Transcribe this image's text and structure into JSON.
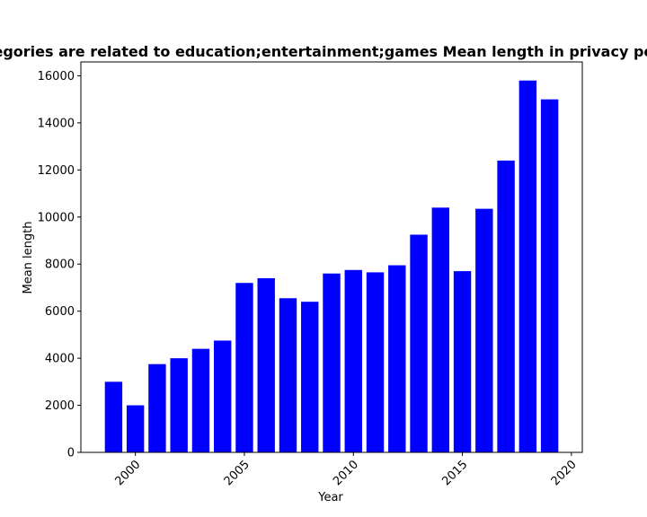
{
  "chart_data": {
    "type": "bar",
    "title": "Categories are related to education;entertainment;games Mean length in privacy policies",
    "xlabel": "Year",
    "ylabel": "Mean length",
    "x": [
      1999,
      2000,
      2001,
      2002,
      2003,
      2004,
      2005,
      2006,
      2007,
      2008,
      2009,
      2010,
      2011,
      2012,
      2013,
      2014,
      2015,
      2016,
      2017,
      2018,
      2019
    ],
    "values": [
      3000,
      2000,
      3750,
      4000,
      4400,
      4750,
      7200,
      7400,
      6550,
      6400,
      7600,
      7750,
      7650,
      7950,
      9250,
      10400,
      7700,
      10350,
      12400,
      15800,
      15000
    ],
    "xlim": [
      1997.5,
      2020.5
    ],
    "ylim": [
      0,
      16590
    ],
    "xticks": [
      2000,
      2005,
      2010,
      2015,
      2020
    ],
    "yticks": [
      0,
      2000,
      4000,
      6000,
      8000,
      10000,
      12000,
      14000,
      16000
    ],
    "bar_width": 0.8,
    "bar_color": "#0000ff",
    "grid": false,
    "legend": "none"
  }
}
